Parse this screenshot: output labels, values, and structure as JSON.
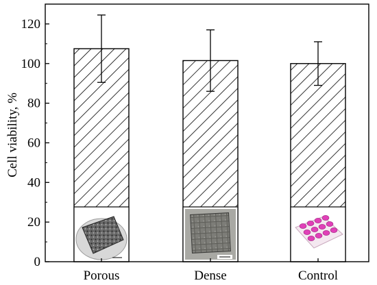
{
  "chart_data": {
    "type": "bar",
    "categories": [
      "Porous",
      "Dense",
      "Control"
    ],
    "values": [
      107.5,
      101.5,
      100
    ],
    "errors": [
      17,
      15.5,
      11
    ],
    "ylabel": "Cell viability, %",
    "xlabel": "",
    "title": "",
    "ylim": [
      0,
      130
    ],
    "yticks": [
      0,
      20,
      40,
      60,
      80,
      100,
      120
    ],
    "bar_fill": "diagonal-hatch",
    "grid": false,
    "inset_images": [
      {
        "category": "Porous",
        "depicts": "porous metal sample photo"
      },
      {
        "category": "Dense",
        "depicts": "dense metal sample photo"
      },
      {
        "category": "Control",
        "depicts": "well plate with pink medium"
      }
    ]
  },
  "colors": {
    "axis": "#000000",
    "bar_fill": "#ffffff",
    "hatch": "#000000",
    "well_pink": "#e040b8",
    "metal_dark": "#555555"
  }
}
